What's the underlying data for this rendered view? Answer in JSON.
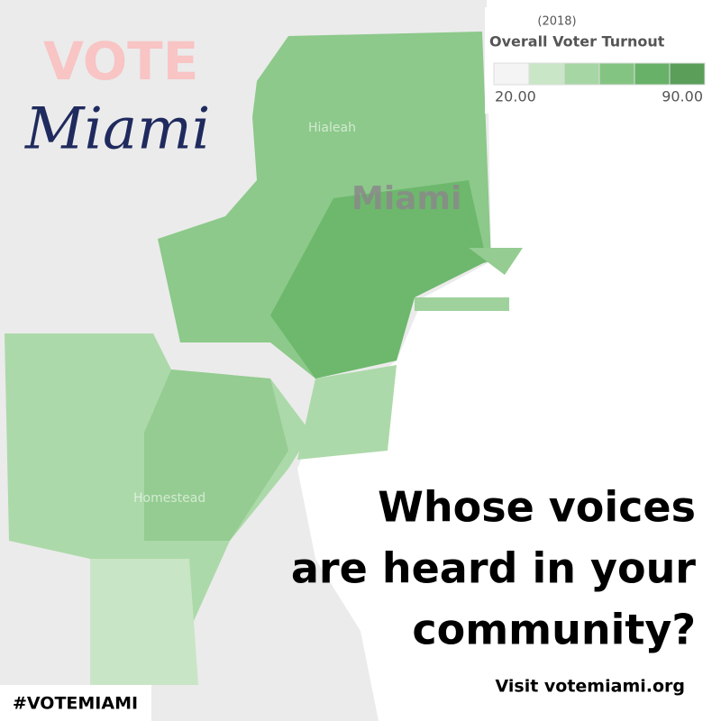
{
  "brand": {
    "word": "VOTE",
    "city": "Miami"
  },
  "legend": {
    "year": "(2018)",
    "title": "Overall Voter Turnout",
    "min_label": "20.00",
    "max_label": "90.00",
    "colors": [
      "#f4f4f4",
      "#c9e6c6",
      "#a6d6a4",
      "#84c482",
      "#68b168",
      "#5a9e5a"
    ]
  },
  "map_labels": {
    "city": "Miami",
    "north": "Hialeah",
    "south": "Homestead"
  },
  "headline": [
    "Whose voices",
    "are heard in your",
    "community?"
  ],
  "call_to_action": "Visit votemiami.org",
  "hashtag": "#VOTEMIAMI"
}
